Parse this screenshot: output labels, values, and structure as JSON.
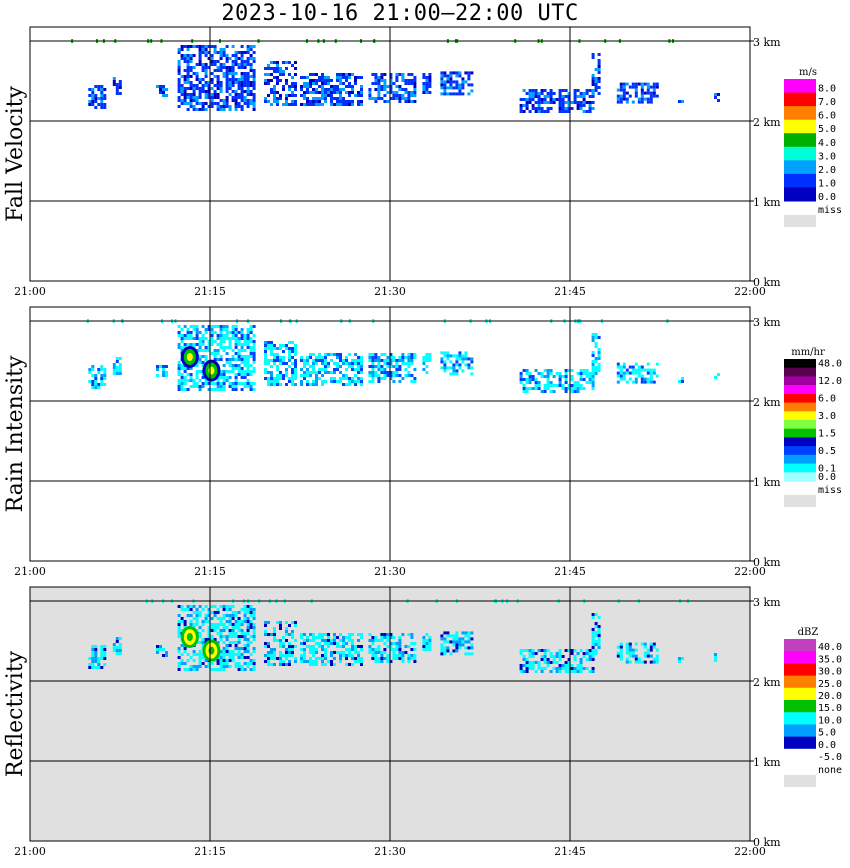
{
  "title": "2023-10-16   21:00–22:00 UTC",
  "chart_data": {
    "type": "heatmap",
    "x_range": [
      "21:00",
      "22:00"
    ],
    "x_ticks": [
      "21:00",
      "21:15",
      "21:30",
      "21:45",
      "22:00"
    ],
    "y_range_km": [
      0,
      3.5
    ],
    "y_ticks": [
      "0 km",
      "1 km",
      "2 km",
      "3 km"
    ],
    "grid": true,
    "legend_placement": "right",
    "panels": [
      {
        "id": "fall-velocity",
        "side_label": "Fall Velocity",
        "unit": "m/s",
        "background": "#ffffff",
        "scale": [
          {
            "label": "8.0",
            "color": "#ff00ff"
          },
          {
            "label": "7.0",
            "color": "#ff0000"
          },
          {
            "label": "6.0",
            "color": "#ff8000"
          },
          {
            "label": "5.0",
            "color": "#ffff00"
          },
          {
            "label": "4.0",
            "color": "#00b000"
          },
          {
            "label": "3.0",
            "color": "#00ffd8"
          },
          {
            "label": "2.0",
            "color": "#00a0ff"
          },
          {
            "label": "1.0",
            "color": "#0030ff"
          },
          {
            "label": "0.0",
            "color": "#0000c0"
          }
        ],
        "missing_label": "miss",
        "missing_color": "#e0e0e0"
      },
      {
        "id": "rain-intensity",
        "side_label": "Rain Intensity",
        "unit": "mm/hr",
        "background": "#ffffff",
        "scale": [
          {
            "label": "48.0",
            "color": "#000000"
          },
          {
            "label": "",
            "color": "#5a0050"
          },
          {
            "label": "12.0",
            "color": "#a000a0"
          },
          {
            "label": "",
            "color": "#ff00ff"
          },
          {
            "label": "6.0",
            "color": "#ff0000"
          },
          {
            "label": "",
            "color": "#ff8000"
          },
          {
            "label": "3.0",
            "color": "#ffff00"
          },
          {
            "label": "",
            "color": "#80ff40"
          },
          {
            "label": "1.5",
            "color": "#00c000"
          },
          {
            "label": "",
            "color": "#0000c0"
          },
          {
            "label": "0.5",
            "color": "#0040ff"
          },
          {
            "label": "",
            "color": "#00a0ff"
          },
          {
            "label": "0.1",
            "color": "#00ffff"
          },
          {
            "label": "0.0",
            "color": "#a0ffff"
          }
        ],
        "missing_label": "miss",
        "missing_color": "#e0e0e0"
      },
      {
        "id": "reflectivity",
        "side_label": "Reflectivity",
        "unit": "dBZ",
        "background": "#e0e0e0",
        "scale": [
          {
            "label": "40.0",
            "color": "#c040c0"
          },
          {
            "label": "35.0",
            "color": "#ff00ff"
          },
          {
            "label": "30.0",
            "color": "#ff0000"
          },
          {
            "label": "25.0",
            "color": "#ff8000"
          },
          {
            "label": "20.0",
            "color": "#ffff00"
          },
          {
            "label": "15.0",
            "color": "#00c000"
          },
          {
            "label": "10.0",
            "color": "#00ffff"
          },
          {
            "label": "5.0",
            "color": "#00a0ff"
          },
          {
            "label": "0.0",
            "color": "#0000c0"
          },
          {
            "label": "-5.0",
            "color": "#ffffff"
          }
        ],
        "missing_label": "none",
        "missing_color": "#e0e0e0"
      }
    ],
    "echoes": [
      {
        "t0": 21.081,
        "t1": 21.105,
        "h0": 2.15,
        "h1": 2.45
      },
      {
        "t0": 21.115,
        "t1": 21.125,
        "h0": 2.35,
        "h1": 2.55
      },
      {
        "t0": 21.175,
        "t1": 21.19,
        "h0": 2.3,
        "h1": 2.45
      },
      {
        "t0": 21.205,
        "t1": 21.31,
        "h0": 2.15,
        "h1": 2.95
      },
      {
        "t0": 21.325,
        "t1": 21.37,
        "h0": 2.22,
        "h1": 2.75
      },
      {
        "t0": 21.375,
        "t1": 21.46,
        "h0": 2.2,
        "h1": 2.6
      },
      {
        "t0": 21.47,
        "t1": 21.535,
        "h0": 2.25,
        "h1": 2.6
      },
      {
        "t0": 21.545,
        "t1": 21.555,
        "h0": 2.35,
        "h1": 2.6
      },
      {
        "t0": 21.57,
        "t1": 21.615,
        "h0": 2.35,
        "h1": 2.62
      },
      {
        "t0": 21.68,
        "t1": 21.78,
        "h0": 2.1,
        "h1": 2.4
      },
      {
        "t0": 21.78,
        "t1": 21.79,
        "h0": 2.35,
        "h1": 2.85
      },
      {
        "t0": 21.815,
        "t1": 21.87,
        "h0": 2.25,
        "h1": 2.48
      },
      {
        "t0": 21.9,
        "t1": 21.905,
        "h0": 2.25,
        "h1": 2.3
      },
      {
        "t0": 21.95,
        "t1": 21.955,
        "h0": 2.25,
        "h1": 2.35
      }
    ],
    "cores": [
      {
        "t": 21.252,
        "h": 2.38
      },
      {
        "t": 21.222,
        "h": 2.55
      }
    ]
  }
}
